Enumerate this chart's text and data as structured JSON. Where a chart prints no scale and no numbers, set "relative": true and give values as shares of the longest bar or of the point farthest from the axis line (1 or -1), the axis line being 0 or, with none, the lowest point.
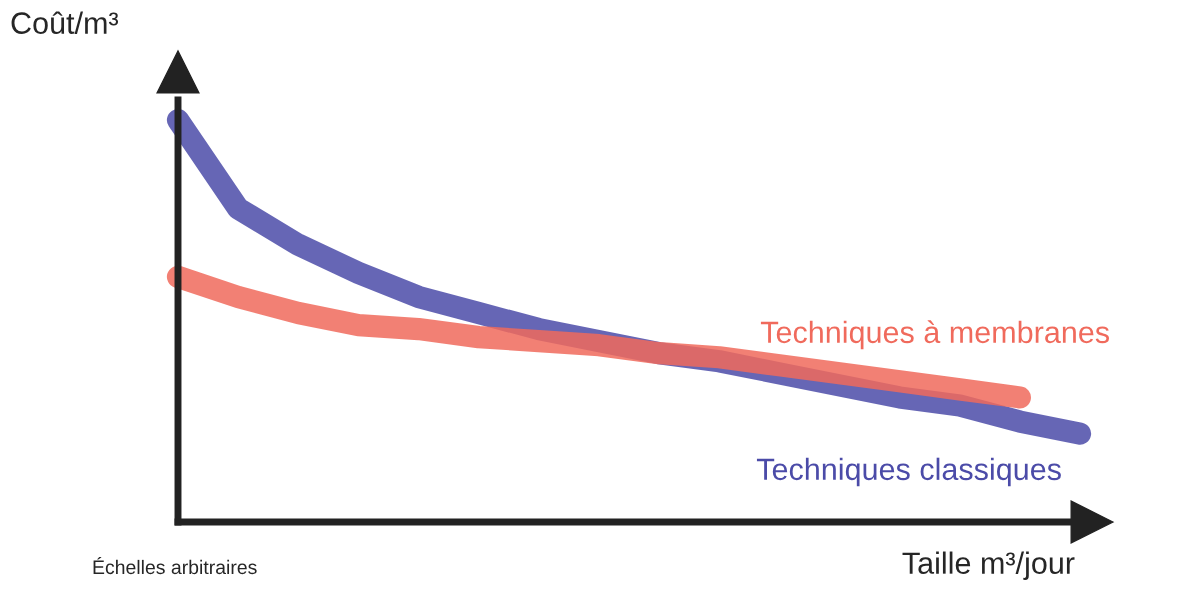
{
  "chart_data": {
    "type": "line",
    "relative": true,
    "ylabel": "Coût/m³",
    "xlabel": "Taille m³/jour",
    "annotations": [
      "Échelles arbitraires"
    ],
    "categories": [
      null,
      null,
      null,
      null,
      null,
      null,
      null,
      null,
      null,
      null,
      null,
      null,
      null,
      null,
      null,
      null
    ],
    "series": [
      {
        "name": "Techniques classiques",
        "color": "#4b4ba8",
        "values": [
          1,
          0.78,
          0.69,
          0.62,
          0.56,
          0.52,
          0.48,
          0.45,
          0.42,
          0.4,
          0.37,
          0.34,
          0.31,
          0.29,
          0.25,
          0.22
        ]
      },
      {
        "name": "Techniques à membranes",
        "color": "#f06a5c",
        "values": [
          0.61,
          0.56,
          0.52,
          0.49,
          0.48,
          0.46,
          0.45,
          0.44,
          0.42,
          0.41,
          0.39,
          0.37,
          0.35,
          0.33,
          0.31,
          null
        ]
      }
    ]
  }
}
